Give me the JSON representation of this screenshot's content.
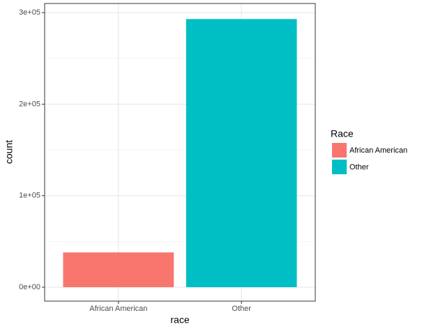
{
  "chart_data": {
    "type": "bar",
    "x_label": "race",
    "y_label": "count",
    "categories": [
      "African American",
      "Other"
    ],
    "values": [
      38000,
      293000
    ],
    "colors": [
      "#f8766d",
      "#00bfc4"
    ],
    "legend_title": "Race",
    "ylim": [
      -15200,
      310000
    ],
    "yticks": [
      {
        "value": 0,
        "label": "0e+00"
      },
      {
        "value": 100000,
        "label": "1e+05"
      },
      {
        "value": 200000,
        "label": "2e+05"
      },
      {
        "value": 300000,
        "label": "3e+05"
      }
    ],
    "y_minor_ticks": [
      50000,
      150000,
      250000
    ],
    "grid": true,
    "legend": "right"
  }
}
